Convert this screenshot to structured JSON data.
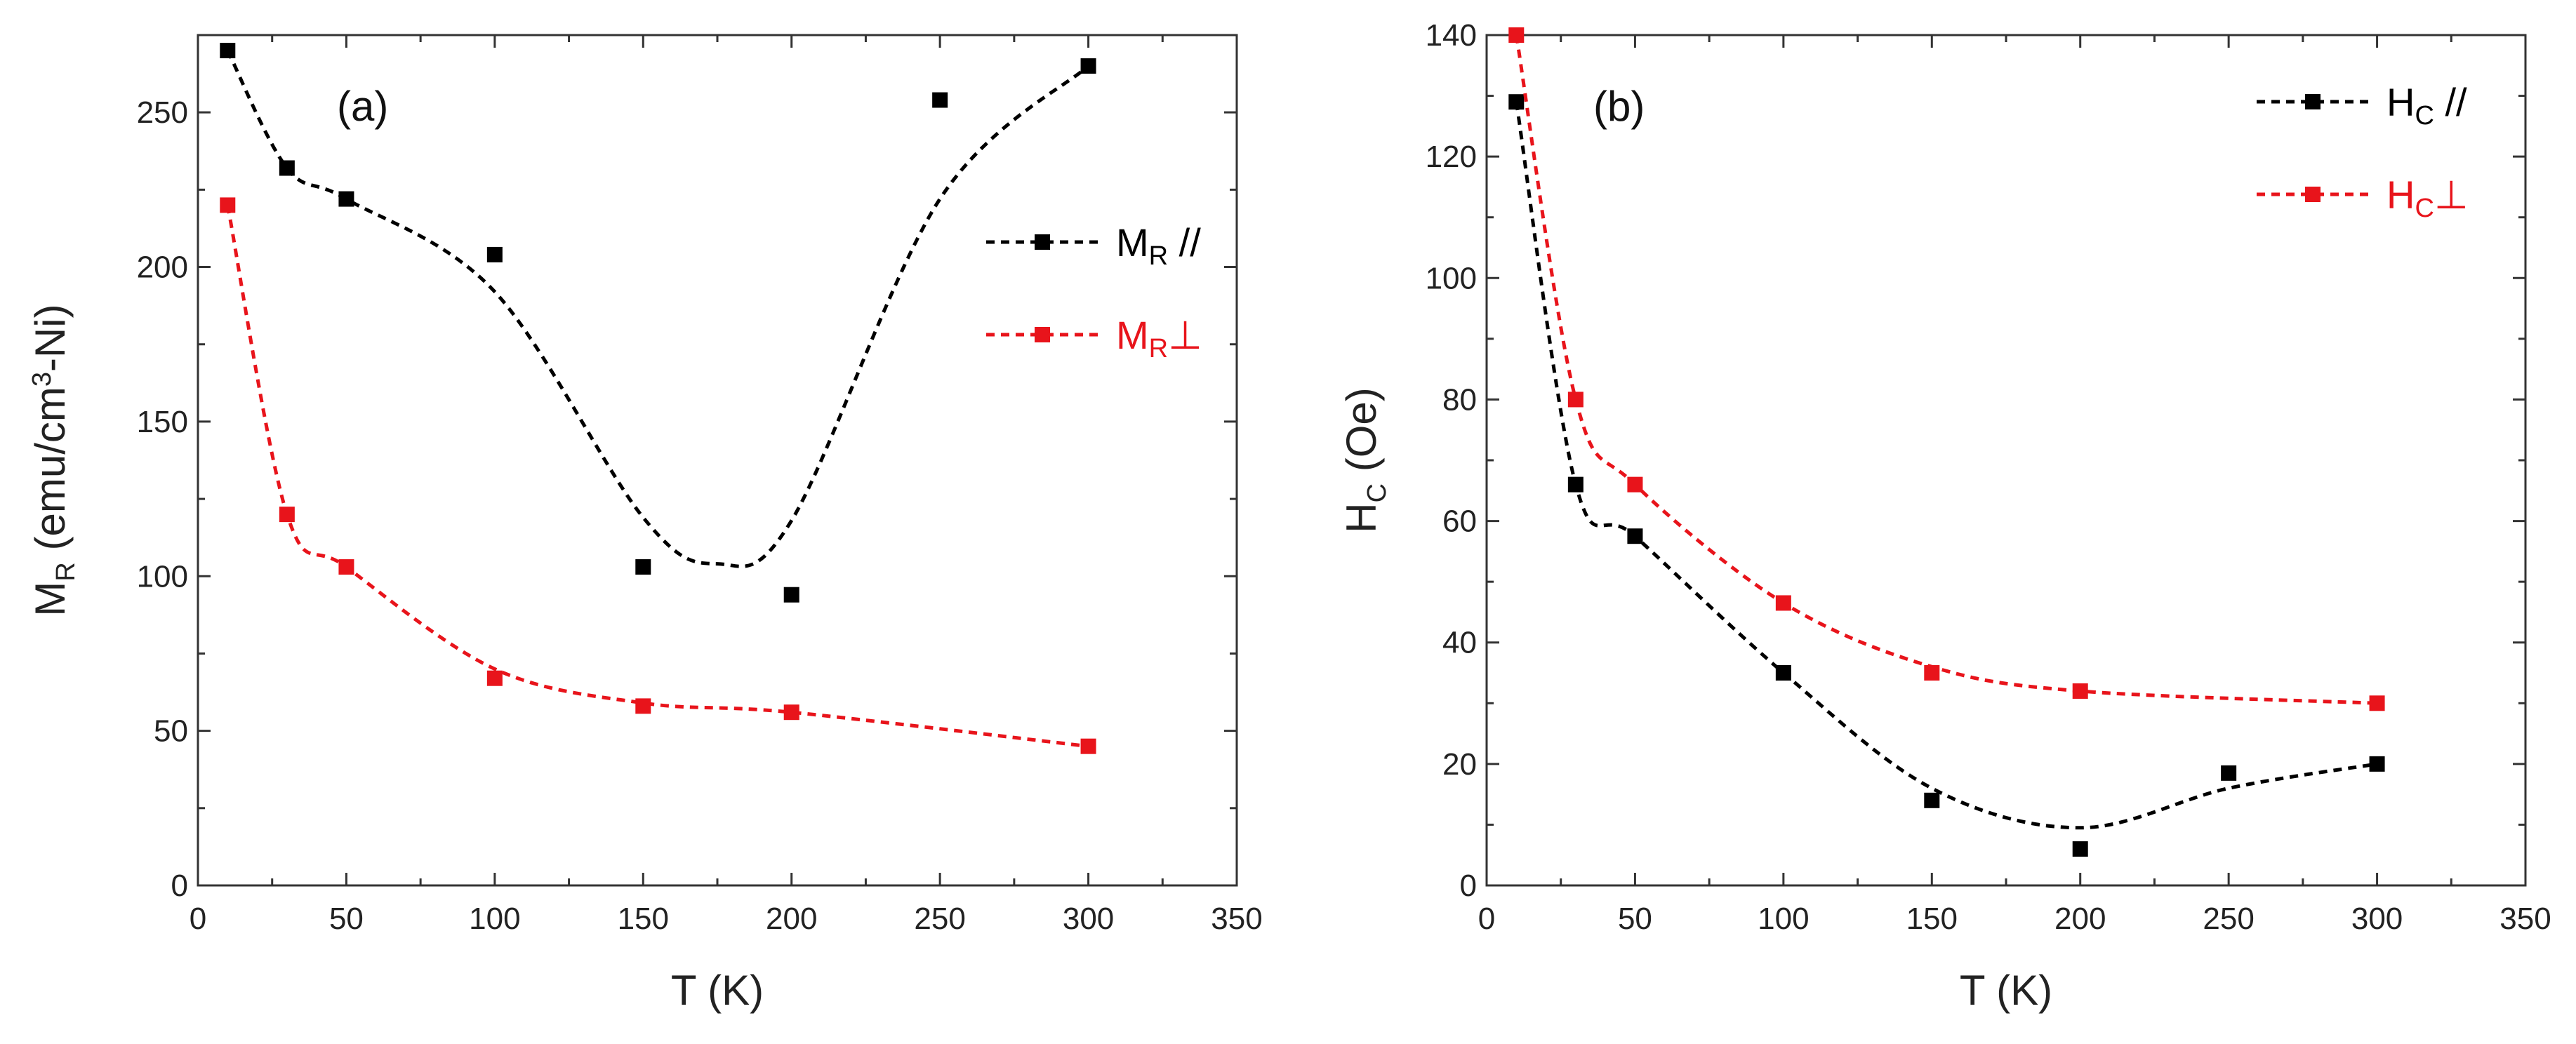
{
  "chart_data": [
    {
      "type": "scatter",
      "panel_label": "(a)",
      "xlabel": "T (K)",
      "ylabel": {
        "main": "M",
        "sub": "R",
        "rest_before_sup": " (emu/cm",
        "sup": "3",
        "rest_after_sup": "-Ni)"
      },
      "xlim": [
        0,
        350
      ],
      "ylim": [
        0,
        275
      ],
      "xticks": [
        "0",
        "50",
        "100",
        "150",
        "200",
        "250",
        "300",
        "350"
      ],
      "yticks": [
        "0",
        "50",
        "100",
        "150",
        "200",
        "250"
      ],
      "grid": false,
      "legend_position": "right",
      "series": [
        {
          "legend": {
            "main": "M",
            "sub": "R",
            "suffix": " //"
          },
          "color": "#000000",
          "x": [
            10,
            30,
            50,
            100,
            150,
            200,
            250,
            300
          ],
          "y": [
            270,
            232,
            222,
            204,
            103,
            94,
            254,
            265
          ],
          "fit_curve": {
            "x": [
              10,
              30,
              50,
              100,
              150,
              175,
              200,
              250,
              300
            ],
            "y": [
              270,
              232,
              222,
              192,
              119,
              104,
              118,
              222,
              265
            ]
          }
        },
        {
          "legend": {
            "main": "M",
            "sub": "R",
            "suffix": "⊥"
          },
          "color": "#e8141b",
          "x": [
            10,
            30,
            50,
            100,
            150,
            200,
            300
          ],
          "y": [
            220,
            120,
            103,
            67,
            58,
            56,
            45
          ],
          "fit_curve": {
            "x": [
              10,
              30,
              50,
              100,
              150,
              200,
              300
            ],
            "y": [
              220,
              120,
              103,
              70,
              59,
              56,
              45
            ]
          }
        }
      ]
    },
    {
      "type": "scatter",
      "panel_label": "(b)",
      "xlabel": "T (K)",
      "ylabel": {
        "main": "H",
        "sub": "C",
        "rest_before_sup": " (Oe)",
        "sup": "",
        "rest_after_sup": ""
      },
      "xlim": [
        0,
        350
      ],
      "ylim": [
        0,
        140
      ],
      "xticks": [
        "0",
        "50",
        "100",
        "150",
        "200",
        "250",
        "300",
        "350"
      ],
      "yticks": [
        "0",
        "20",
        "40",
        "60",
        "80",
        "100",
        "120",
        "140"
      ],
      "grid": false,
      "legend_position": "top-right",
      "series": [
        {
          "legend": {
            "main": "H",
            "sub": "C",
            "suffix": " //"
          },
          "color": "#000000",
          "x": [
            10,
            30,
            50,
            100,
            150,
            200,
            250,
            300
          ],
          "y": [
            129,
            66,
            57.5,
            35,
            14,
            6,
            18.5,
            20
          ],
          "fit_curve": {
            "x": [
              10,
              30,
              50,
              100,
              150,
              200,
              250,
              300
            ],
            "y": [
              129,
              66,
              57.5,
              35,
              16,
              9.5,
              16,
              20
            ]
          }
        },
        {
          "legend": {
            "main": "H",
            "sub": "C",
            "suffix": "⊥"
          },
          "color": "#e8141b",
          "x": [
            10,
            30,
            50,
            100,
            150,
            200,
            300
          ],
          "y": [
            140,
            80,
            66,
            46.5,
            35,
            32,
            30
          ],
          "fit_curve": {
            "x": [
              10,
              30,
              50,
              100,
              150,
              200,
              300
            ],
            "y": [
              140,
              80,
              66,
              46.5,
              36,
              32,
              30
            ]
          }
        }
      ]
    }
  ]
}
